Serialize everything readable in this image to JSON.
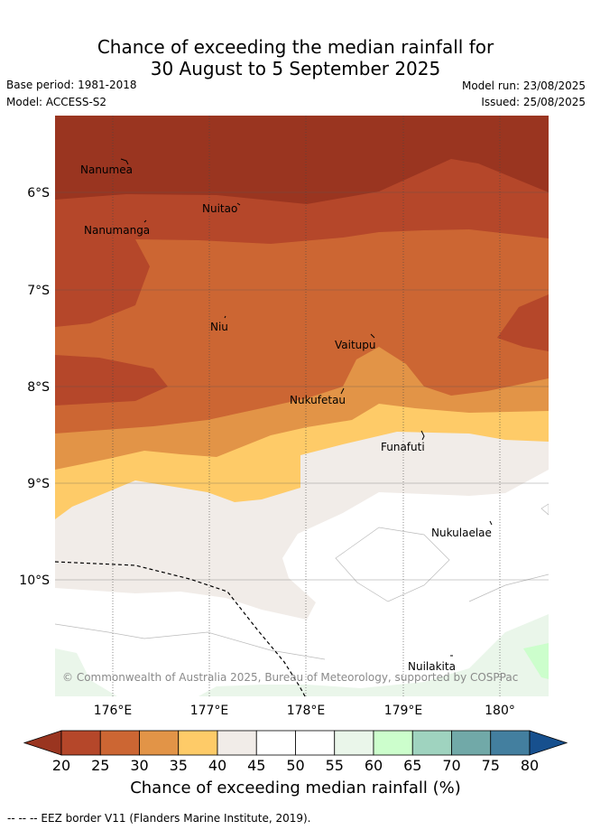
{
  "title": {
    "line1": "Chance of exceeding the median rainfall for",
    "line2": "30 August to 5 September 2025"
  },
  "meta": {
    "base_period": "Base period: 1981-2018",
    "model": "Model: ACCESS-S2",
    "model_run": "Model run: 23/08/2025",
    "issued": "Issued: 25/08/2025"
  },
  "map": {
    "lat_ticks": [
      "6°S",
      "7°S",
      "8°S",
      "9°S",
      "10°S"
    ],
    "lon_ticks": [
      "176°E",
      "177°E",
      "178°E",
      "179°E",
      "180°"
    ],
    "islands": [
      "Nanumea",
      "Nuitao",
      "Nanumanga",
      "Niu",
      "Vaitupu",
      "Nukufetau",
      "Funafuti",
      "Nukulaelae",
      "Nuilakita"
    ],
    "copyright": "© Commonwealth of Australia 2025, Bureau of Meteorology, supported by COSPPac"
  },
  "colorbar": {
    "ticks": [
      "20",
      "25",
      "30",
      "35",
      "40",
      "45",
      "50",
      "55",
      "60",
      "65",
      "70",
      "75",
      "80"
    ],
    "colors": [
      "#9a3520",
      "#b5472a",
      "#cc6633",
      "#e29447",
      "#fecb68",
      "#f1ece8",
      "#ffffff",
      "#ffffff",
      "#eaf6ea",
      "#ccfecc",
      "#9fd3bf",
      "#71a9a8",
      "#437f9f",
      "#17508e"
    ],
    "title": "Chance of exceeding median rainfall (%)"
  },
  "footnote": "-- -- -- EEZ border V11 (Flanders Marine Institute, 2019)."
}
